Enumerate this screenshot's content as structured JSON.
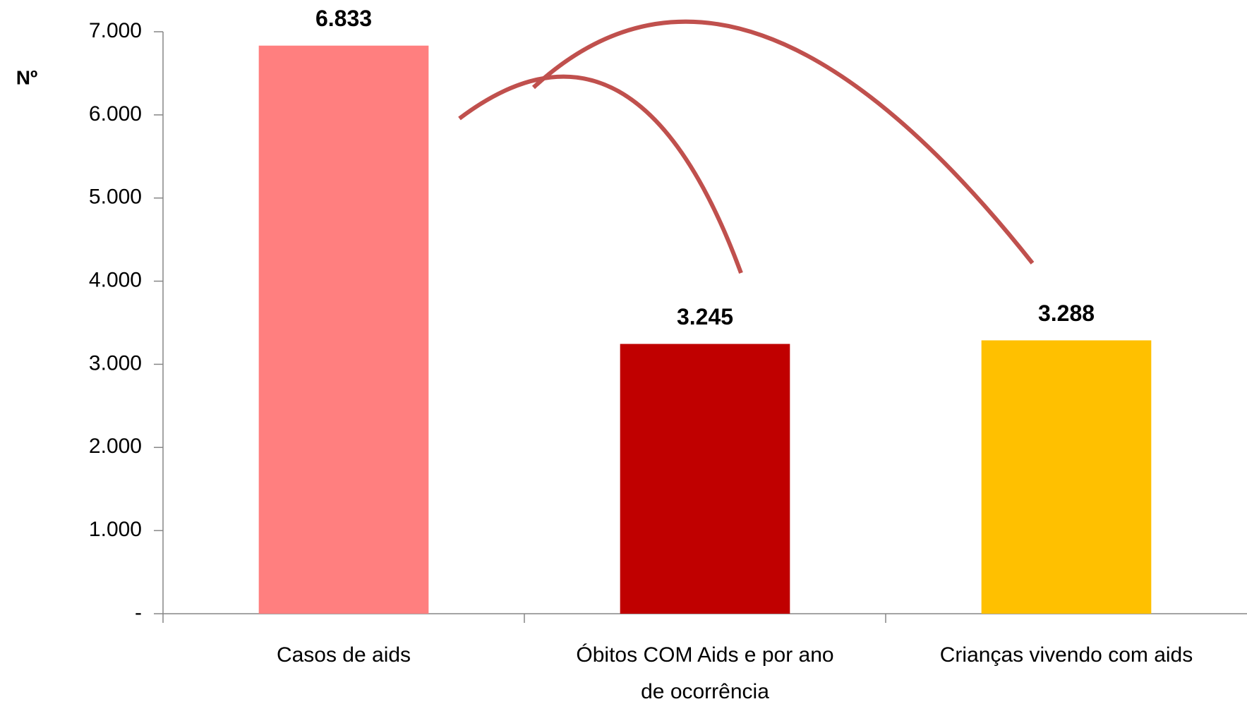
{
  "chart_data": {
    "type": "bar",
    "ylabel": "Nº",
    "categories": [
      "Casos de aids",
      "Óbitos COM Aids e por ano de ocorrência",
      "Crianças vivendo com aids"
    ],
    "values": [
      6833,
      3245,
      3288
    ],
    "value_labels": [
      "6.833",
      "3.245",
      "3.288"
    ],
    "colors": [
      "#ff7f7f",
      "#c00000",
      "#ffc000"
    ],
    "ylim": [
      0,
      7000
    ],
    "yticks": [
      {
        "value": 0,
        "label": "-"
      },
      {
        "value": 1000,
        "label": "1.000"
      },
      {
        "value": 2000,
        "label": "2.000"
      },
      {
        "value": 3000,
        "label": "3.000"
      },
      {
        "value": 4000,
        "label": "4.000"
      },
      {
        "value": 5000,
        "label": "5.000"
      },
      {
        "value": 6000,
        "label": "6.000"
      },
      {
        "value": 7000,
        "label": "7.000"
      }
    ],
    "grid": false
  }
}
